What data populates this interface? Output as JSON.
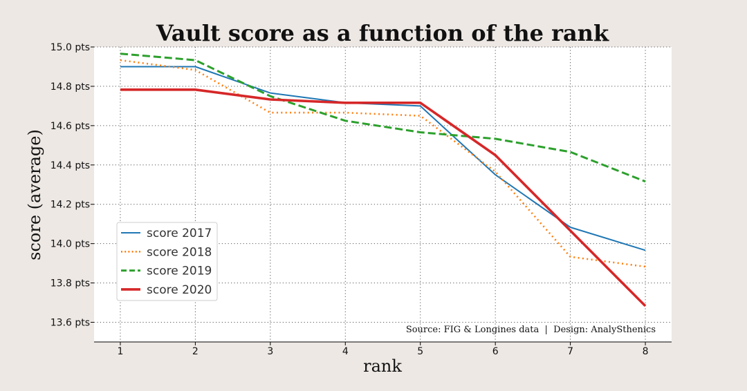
{
  "chart_data": {
    "type": "line",
    "title": "Vault score as a function of the rank",
    "xlabel": "rank",
    "ylabel": "score (average)",
    "x": [
      1,
      2,
      3,
      4,
      5,
      6,
      7,
      8
    ],
    "xlim": [
      0.65,
      8.35
    ],
    "ylim": [
      13.5,
      15.0
    ],
    "yticks": [
      13.6,
      13.8,
      14.0,
      14.2,
      14.4,
      14.6,
      14.8,
      15.0
    ],
    "ytick_labels": [
      "13.6 pts",
      "13.8 pts",
      "14.0 pts",
      "14.2 pts",
      "14.4 pts",
      "14.6 pts",
      "14.8 pts",
      "15.0 pts"
    ],
    "xticks": [
      1,
      2,
      3,
      4,
      5,
      6,
      7,
      8
    ],
    "xtick_labels": [
      "1",
      "2",
      "3",
      "4",
      "5",
      "6",
      "7",
      "8"
    ],
    "grid": true,
    "legend_position": "center-left",
    "series": [
      {
        "name": "score 2017",
        "color": "#1f77b4",
        "style": "solid",
        "width": 2,
        "values": [
          14.9,
          14.9,
          14.766,
          14.716,
          14.7,
          14.35,
          14.083,
          13.966
        ]
      },
      {
        "name": "score 2018",
        "color": "#ff7f0e",
        "style": "dotted",
        "width": 2.6,
        "values": [
          14.933,
          14.883,
          14.666,
          14.666,
          14.65,
          14.366,
          13.933,
          13.883
        ]
      },
      {
        "name": "score 2019",
        "color": "#2ca02c",
        "style": "dashed",
        "width": 3,
        "values": [
          14.966,
          14.933,
          14.75,
          14.625,
          14.566,
          14.533,
          14.466,
          14.316
        ]
      },
      {
        "name": "score 2020",
        "color": "#d62728",
        "style": "solid",
        "width": 3.6,
        "values": [
          14.783,
          14.783,
          14.733,
          14.716,
          14.716,
          14.45,
          14.066,
          13.683
        ]
      }
    ],
    "annotation": "Source: FIG & Longines data  |  Design: AnalySthenics"
  }
}
